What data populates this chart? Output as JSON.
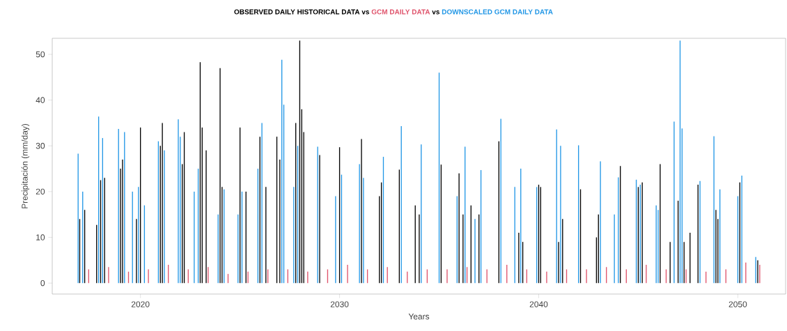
{
  "chart_data": {
    "type": "bar",
    "annotations": [
      "vs",
      "vs"
    ],
    "xlabel": "Years",
    "ylabel": "Precipitación (mm/day)",
    "xlim": [
      2015.57,
      2052.4
    ],
    "ylim": [
      -2.4,
      53.5
    ],
    "xticks": [
      2020,
      2030,
      2040,
      2050
    ],
    "yticks": [
      0,
      10,
      20,
      30,
      40,
      50
    ],
    "series": [
      {
        "name": "OBSERVED DAILY HISTORICAL DATA",
        "color": "#000000",
        "x": [
          2016.95,
          2017.2,
          2017.8,
          2018.0,
          2018.2,
          2019.0,
          2019.1,
          2019.8,
          2020.0,
          2021.0,
          2021.1,
          2022.1,
          2022.2,
          2023.0,
          2023.1,
          2023.3,
          2024.0,
          2024.1,
          2025.0,
          2025.3,
          2026.0,
          2026.3,
          2026.85,
          2027.0,
          2027.8,
          2028.0,
          2028.1,
          2028.2,
          2029.0,
          2030.0,
          2031.1,
          2032.0,
          2032.1,
          2033.0,
          2033.8,
          2034.0,
          2035.1,
          2036.0,
          2036.2,
          2036.6,
          2037.0,
          2038.0,
          2039.0,
          2039.2,
          2040.0,
          2040.1,
          2041.0,
          2041.2,
          2042.1,
          2042.9,
          2043.0,
          2044.1,
          2045.0,
          2045.2,
          2046.1,
          2046.6,
          2047.0,
          2047.3,
          2047.6,
          2048.0,
          2048.9,
          2049.0,
          2050.1,
          2051.0
        ],
        "values": [
          14,
          16,
          12.7,
          22.5,
          23,
          25,
          27,
          14,
          34,
          30,
          35,
          26,
          33,
          48.3,
          34,
          29,
          47,
          21,
          34,
          20,
          32,
          21,
          32,
          27,
          35,
          53,
          38,
          33,
          28,
          29.7,
          31.5,
          19,
          22,
          24.8,
          17,
          15,
          25.9,
          24,
          15,
          17,
          15,
          31,
          11,
          9,
          21.5,
          21,
          9,
          14,
          20.5,
          10,
          15,
          25.6,
          21,
          22,
          26,
          9,
          18,
          9,
          11,
          21.5,
          16,
          14,
          22,
          5
        ]
      },
      {
        "name": "GCM DAILY DATA",
        "color": "#df536b",
        "x": [
          2017.4,
          2018.4,
          2019.4,
          2020.4,
          2021.4,
          2022.4,
          2023.4,
          2024.4,
          2025.4,
          2026.4,
          2027.4,
          2028.4,
          2029.4,
          2030.4,
          2031.4,
          2032.4,
          2033.4,
          2034.4,
          2035.4,
          2036.4,
          2037.4,
          2038.4,
          2039.4,
          2040.4,
          2041.4,
          2042.4,
          2043.4,
          2044.4,
          2045.4,
          2046.4,
          2047.4,
          2048.4,
          2049.4,
          2050.4,
          2051.1
        ],
        "values": [
          3,
          3.5,
          2.5,
          3,
          4,
          3,
          3.5,
          2,
          2.5,
          3,
          3,
          2.5,
          3,
          4,
          3,
          3.5,
          2.5,
          3,
          3,
          3.5,
          3,
          4,
          3,
          2.5,
          3,
          3,
          3.5,
          3,
          4,
          3,
          3,
          2.5,
          3,
          4.5,
          4
        ]
      },
      {
        "name": "DOWNSCALED GCM DAILY DATA",
        "color": "#2297e6",
        "x": [
          2016.87,
          2017.1,
          2017.9,
          2018.1,
          2018.9,
          2019.2,
          2019.6,
          2019.9,
          2020.2,
          2020.9,
          2021.2,
          2021.9,
          2022.0,
          2022.7,
          2022.9,
          2023.9,
          2024.2,
          2024.9,
          2025.1,
          2025.9,
          2026.1,
          2027.1,
          2027.2,
          2027.7,
          2027.9,
          2028.9,
          2029.8,
          2030.1,
          2031.0,
          2031.2,
          2032.2,
          2033.1,
          2034.1,
          2035.0,
          2035.9,
          2036.3,
          2036.8,
          2037.1,
          2038.1,
          2038.8,
          2039.1,
          2039.9,
          2040.9,
          2041.1,
          2042.0,
          2043.1,
          2043.8,
          2044.0,
          2044.9,
          2045.1,
          2045.9,
          2046.0,
          2046.8,
          2047.1,
          2047.2,
          2048.1,
          2048.8,
          2049.1,
          2050.0,
          2050.2,
          2050.9
        ],
        "values": [
          28.3,
          20,
          36.4,
          31.7,
          33.7,
          33,
          20,
          21,
          17,
          31,
          29,
          35.8,
          32,
          20,
          25,
          15,
          20.5,
          15,
          20,
          25,
          35,
          48.8,
          39,
          21,
          30,
          29.8,
          19,
          23.7,
          26,
          23,
          27.6,
          34.3,
          30.3,
          46,
          19,
          29.8,
          14,
          24.7,
          35.9,
          21,
          25,
          21,
          33.6,
          30,
          30.1,
          26.6,
          15,
          23.1,
          22.6,
          21.5,
          17,
          16,
          35.3,
          53,
          33.8,
          22.3,
          32.1,
          20.5,
          19,
          23.5,
          5.7
        ]
      }
    ]
  }
}
